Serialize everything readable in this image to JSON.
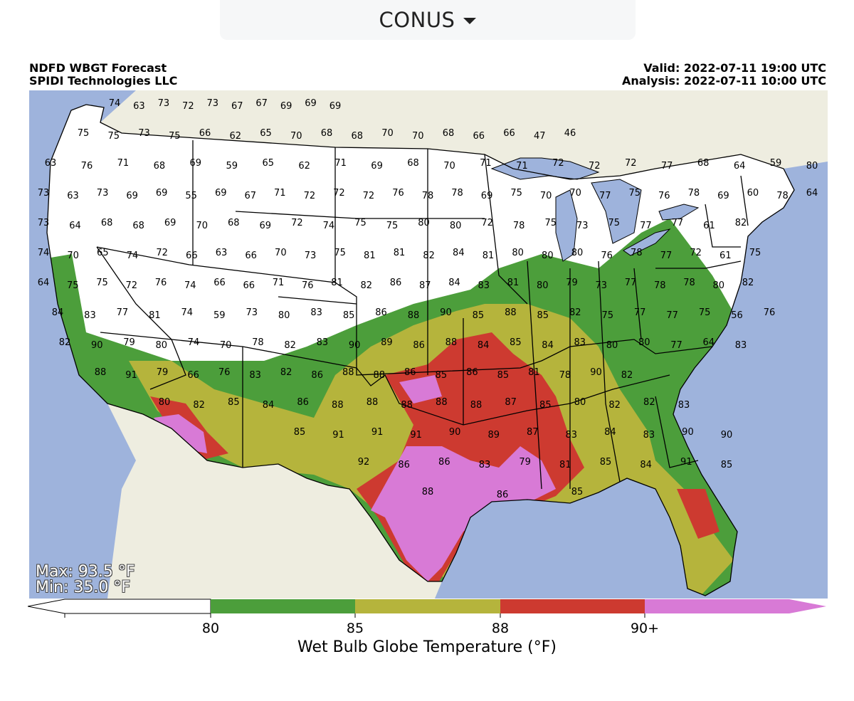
{
  "region_selector": {
    "value": "CONUS"
  },
  "header": {
    "title": "NDFD WBGT Forecast",
    "org": "SPIDI Technologies LLC",
    "valid": "Valid: 2022-07-11 19:00 UTC",
    "analysis": "Analysis: 2022-07-11 10:00 UTC"
  },
  "stats": {
    "max": "Max: 93.5 °F",
    "min": "Min: 35.0 °F"
  },
  "colorbar": {
    "label": "Wet Bulb Globe Temperature (°F)",
    "ticks": [
      "80",
      "85",
      "88",
      "90+"
    ],
    "colors": {
      "below_80": "#ffffff",
      "80_85": "#4c9e3b",
      "85_88": "#b5b43c",
      "88_90": "#cd3a30",
      "90_plus": "#d87ad6"
    }
  },
  "map_colors": {
    "ocean": "#9eb3dc",
    "land_outside": "#eeede0"
  },
  "station_values": [
    "74",
    "63",
    "73",
    "72",
    "73",
    "67",
    "67",
    "69",
    "69",
    "69",
    "75",
    "75",
    "73",
    "75",
    "66",
    "62",
    "65",
    "70",
    "68",
    "68",
    "70",
    "70",
    "68",
    "66",
    "66",
    "47",
    "46",
    "63",
    "76",
    "71",
    "68",
    "69",
    "59",
    "65",
    "62",
    "71",
    "69",
    "68",
    "70",
    "71",
    "71",
    "72",
    "72",
    "72",
    "77",
    "68",
    "64",
    "59",
    "80",
    "73",
    "63",
    "73",
    "69",
    "69",
    "55",
    "69",
    "67",
    "71",
    "72",
    "72",
    "72",
    "76",
    "78",
    "78",
    "69",
    "75",
    "70",
    "70",
    "77",
    "75",
    "76",
    "78",
    "69",
    "60",
    "78",
    "64",
    "73",
    "64",
    "68",
    "68",
    "69",
    "70",
    "68",
    "69",
    "72",
    "74",
    "75",
    "75",
    "80",
    "80",
    "72",
    "78",
    "75",
    "73",
    "75",
    "77",
    "77",
    "61",
    "82",
    "74",
    "70",
    "65",
    "74",
    "72",
    "66",
    "63",
    "66",
    "70",
    "73",
    "75",
    "81",
    "81",
    "82",
    "84",
    "81",
    "80",
    "80",
    "80",
    "76",
    "78",
    "77",
    "72",
    "61",
    "75",
    "64",
    "75",
    "75",
    "72",
    "76",
    "74",
    "66",
    "66",
    "71",
    "76",
    "81",
    "82",
    "86",
    "87",
    "84",
    "83",
    "81",
    "80",
    "79",
    "73",
    "77",
    "78",
    "78",
    "80",
    "82",
    "84",
    "83",
    "77",
    "81",
    "74",
    "59",
    "73",
    "80",
    "83",
    "85",
    "86",
    "88",
    "90",
    "85",
    "88",
    "85",
    "82",
    "75",
    "77",
    "77",
    "75",
    "56",
    "76",
    "82",
    "90",
    "79",
    "80",
    "74",
    "70",
    "78",
    "82",
    "83",
    "90",
    "89",
    "86",
    "88",
    "84",
    "85",
    "84",
    "83",
    "80",
    "80",
    "77",
    "64",
    "83",
    "88",
    "91",
    "79",
    "66",
    "76",
    "83",
    "82",
    "86",
    "88",
    "88",
    "86",
    "85",
    "86",
    "85",
    "81",
    "78",
    "90",
    "82",
    "80",
    "82",
    "85",
    "84",
    "86",
    "88",
    "88",
    "88",
    "88",
    "88",
    "87",
    "85",
    "80",
    "82",
    "82",
    "83",
    "85",
    "91",
    "91",
    "91",
    "90",
    "89",
    "87",
    "83",
    "84",
    "83",
    "90",
    "90",
    "92",
    "86",
    "86",
    "83",
    "79",
    "81",
    "85",
    "84",
    "91",
    "85",
    "88",
    "86",
    "85"
  ]
}
